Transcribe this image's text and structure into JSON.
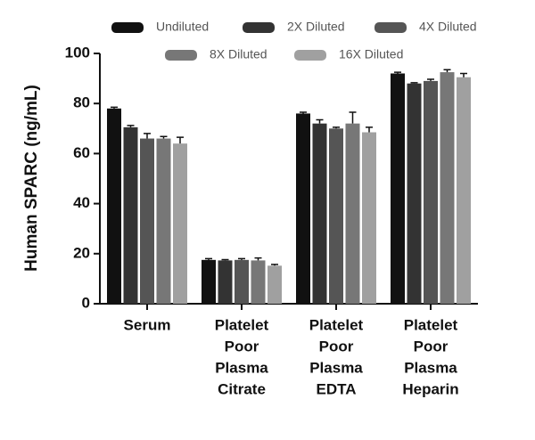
{
  "chart_data": {
    "type": "bar",
    "y_label": "Human SPARC (ng/mL)",
    "categories": [
      [
        "Serum"
      ],
      [
        "Platelet",
        "Poor",
        "Plasma",
        "Citrate"
      ],
      [
        "Platelet",
        "Poor",
        "Plasma",
        "EDTA"
      ],
      [
        "Platelet",
        "Poor",
        "Plasma",
        "Heparin"
      ]
    ],
    "series": [
      {
        "name": "Undiluted",
        "color": "#111111",
        "values": [
          78,
          17.5,
          76,
          92
        ],
        "errors": [
          0.5,
          0.5,
          0.5,
          0.5
        ]
      },
      {
        "name": "2X Diluted",
        "color": "#333333",
        "values": [
          70.5,
          17.3,
          72,
          88
        ],
        "errors": [
          0.7,
          0.3,
          1.5,
          0.3
        ]
      },
      {
        "name": "4X Diluted",
        "color": "#555555",
        "values": [
          66,
          17.5,
          70,
          89
        ],
        "errors": [
          2,
          0.5,
          0.5,
          0.7
        ]
      },
      {
        "name": "8X Diluted",
        "color": "#777777",
        "values": [
          66,
          17.3,
          72,
          92.5
        ],
        "errors": [
          0.8,
          1,
          4.5,
          1
        ]
      },
      {
        "name": "16X Diluted",
        "color": "#a0a0a0",
        "values": [
          64,
          15.2,
          68.5,
          90.5
        ],
        "errors": [
          2.5,
          0.5,
          2,
          1.5
        ]
      }
    ],
    "ylim": [
      0,
      100
    ],
    "yticks": [
      0,
      20,
      40,
      60,
      80,
      100
    ],
    "legend": "top"
  }
}
